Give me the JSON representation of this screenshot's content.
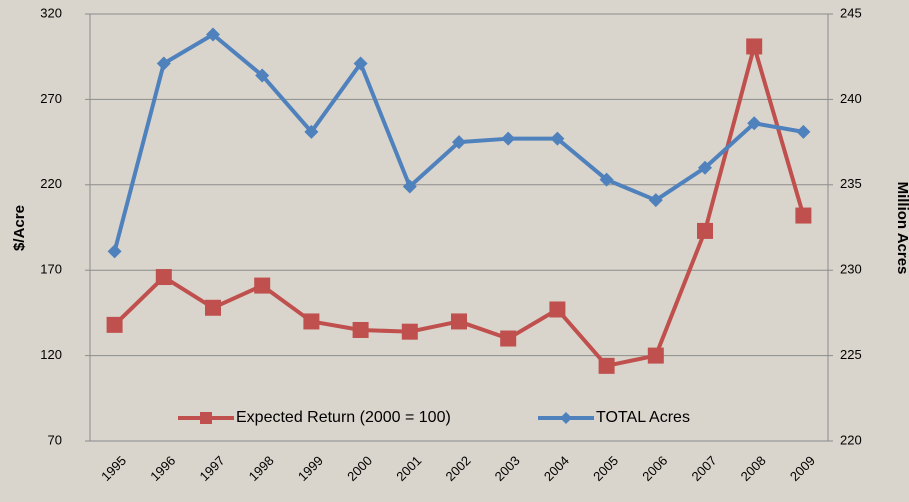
{
  "chart_data": {
    "type": "line",
    "categories": [
      "1995",
      "1996",
      "1997",
      "1998",
      "1999",
      "2000",
      "2001",
      "2002",
      "2003",
      "2004",
      "2005",
      "2006",
      "2007",
      "2008",
      "2009"
    ],
    "series": [
      {
        "name": "Expected Return (2000 = 100)",
        "color": "#c0504d",
        "marker": "square",
        "values": [
          138,
          166,
          148,
          161,
          140,
          135,
          134,
          140,
          130,
          147,
          114,
          120,
          193,
          301,
          202
        ]
      },
      {
        "name": "TOTAL Acres",
        "color": "#4f81bd",
        "marker": "diamond",
        "axis": "y2",
        "values": [
          231.1,
          242.1,
          243.8,
          241.4,
          238.1,
          242.1,
          234.9,
          237.5,
          237.7,
          237.7,
          235.3,
          234.1,
          236.0,
          238.6,
          238.1
        ]
      }
    ],
    "ylabel": "$/Acre",
    "y2label": "Million Acres",
    "ylim": [
      70,
      320
    ],
    "yticks": [
      70,
      120,
      170,
      220,
      270,
      320
    ],
    "y2lim": [
      220,
      245
    ],
    "y2ticks": [
      220,
      225,
      230,
      235,
      240,
      245
    ],
    "grid": true,
    "legend": "bottom"
  }
}
